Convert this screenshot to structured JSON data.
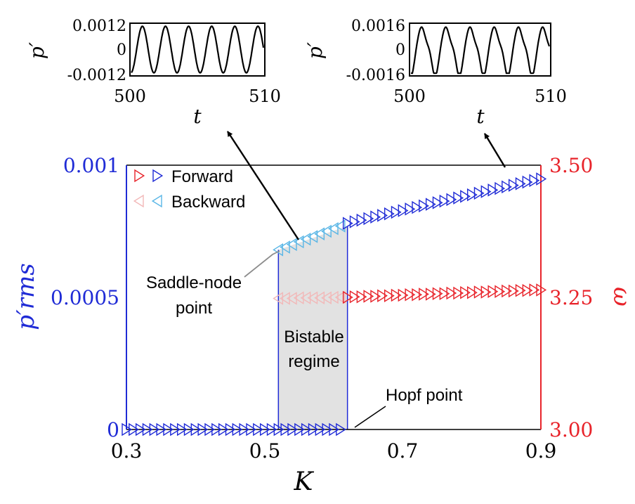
{
  "colors": {
    "forward_pm": "#1f2bd6",
    "forward_omega": "#e8232a",
    "backward_pm": "#59b6e6",
    "backward_omega": "#f2b8b8",
    "left_axis": "#1f2bd6",
    "right_axis": "#e8232a",
    "bistable_fill": "#e2e2e2"
  },
  "chart_data": [
    {
      "type": "scatter",
      "xlabel": "K",
      "ylabel_left": "p′rms",
      "ylabel_right": "ω",
      "xlim": [
        0.3,
        0.9
      ],
      "ylim_left": [
        0,
        0.001
      ],
      "ylim_right": [
        3.0,
        3.5
      ],
      "x_ticks": [
        "0.3",
        "0.5",
        "0.7",
        "0.9"
      ],
      "left_ticks": [
        "0",
        "0.0005",
        "0.001"
      ],
      "right_ticks": [
        "3.00",
        "3.25",
        "3.50"
      ],
      "legend": {
        "placement": "top-left",
        "forward": "Forward",
        "backward": "Backward"
      },
      "annotations": {
        "saddle_node_line1": "Saddle-node",
        "saddle_node_line2": "point",
        "bistable_line1": "Bistable",
        "bistable_line2": "regime",
        "hopf": "Hopf point"
      },
      "bistable_range": [
        0.52,
        0.62
      ],
      "series": [
        {
          "name": "Forward",
          "axis": "left",
          "marker": "triangle-right",
          "x": [
            0.3,
            0.31,
            0.32,
            0.33,
            0.34,
            0.35,
            0.36,
            0.37,
            0.38,
            0.39,
            0.4,
            0.41,
            0.42,
            0.43,
            0.44,
            0.45,
            0.46,
            0.47,
            0.48,
            0.49,
            0.5,
            0.51,
            0.52,
            0.53,
            0.54,
            0.55,
            0.56,
            0.57,
            0.58,
            0.59,
            0.6,
            0.61,
            0.62,
            0.63,
            0.64,
            0.65,
            0.66,
            0.67,
            0.68,
            0.69,
            0.7,
            0.71,
            0.72,
            0.73,
            0.74,
            0.75,
            0.76,
            0.77,
            0.78,
            0.79,
            0.8,
            0.81,
            0.82,
            0.83,
            0.84,
            0.85,
            0.86,
            0.87,
            0.88,
            0.89,
            0.9
          ],
          "y": [
            0,
            0,
            0,
            0,
            0,
            0,
            0,
            0,
            0,
            0,
            0,
            0,
            0,
            0,
            0,
            0,
            0,
            0,
            0,
            0,
            0,
            0,
            0,
            0,
            0,
            0,
            0,
            0,
            0,
            0,
            0,
            0,
            0.00078,
            0.000786,
            0.000792,
            0.000798,
            0.000804,
            0.00081,
            0.000816,
            0.000822,
            0.000828,
            0.000834,
            0.00084,
            0.000846,
            0.000852,
            0.000858,
            0.000864,
            0.00087,
            0.000876,
            0.000882,
            0.000888,
            0.000894,
            0.0009,
            0.000906,
            0.000912,
            0.000918,
            0.000924,
            0.00093,
            0.000936,
            0.000942,
            0.000948
          ]
        },
        {
          "name": "Backward",
          "axis": "left",
          "marker": "triangle-left",
          "x": [
            0.52,
            0.53,
            0.54,
            0.55,
            0.56,
            0.57,
            0.58,
            0.59,
            0.6,
            0.61
          ],
          "y": [
            0.00068,
            0.00069,
            0.0007,
            0.00071,
            0.00072,
            0.00073,
            0.00074,
            0.00075,
            0.00076,
            0.00077
          ]
        },
        {
          "name": "Forward",
          "axis": "right",
          "marker": "triangle-right",
          "x": [
            0.62,
            0.63,
            0.64,
            0.65,
            0.66,
            0.67,
            0.68,
            0.69,
            0.7,
            0.71,
            0.72,
            0.73,
            0.74,
            0.75,
            0.76,
            0.77,
            0.78,
            0.79,
            0.8,
            0.81,
            0.82,
            0.83,
            0.84,
            0.85,
            0.86,
            0.87,
            0.88,
            0.89,
            0.9
          ],
          "y": [
            3.25,
            3.251,
            3.251,
            3.252,
            3.252,
            3.253,
            3.253,
            3.254,
            3.254,
            3.255,
            3.255,
            3.256,
            3.256,
            3.257,
            3.257,
            3.258,
            3.258,
            3.259,
            3.259,
            3.26,
            3.26,
            3.261,
            3.261,
            3.262,
            3.262,
            3.263,
            3.263,
            3.264,
            3.264
          ]
        },
        {
          "name": "Backward",
          "axis": "right",
          "marker": "triangle-left",
          "x": [
            0.52,
            0.53,
            0.54,
            0.55,
            0.56,
            0.57,
            0.58,
            0.59,
            0.6,
            0.61
          ],
          "y": [
            3.248,
            3.248,
            3.248,
            3.249,
            3.249,
            3.249,
            3.249,
            3.249,
            3.25,
            3.25
          ]
        }
      ]
    },
    {
      "type": "line",
      "xlabel": "t",
      "ylabel": "p′",
      "xlim": [
        500,
        510
      ],
      "ylim": [
        -0.0012,
        0.0012
      ],
      "x_ticks": [
        "500",
        "510"
      ],
      "y_ticks": [
        "0.0012",
        "0",
        "-0.0012"
      ],
      "waveform": {
        "period": 1.75,
        "amplitude": 0.00112,
        "shape": "smooth"
      }
    },
    {
      "type": "line",
      "xlabel": "t",
      "ylabel": "p′",
      "xlim": [
        500,
        510
      ],
      "ylim": [
        -0.0016,
        0.0016
      ],
      "x_ticks": [
        "500",
        "510"
      ],
      "y_ticks": [
        "0.0016",
        "0",
        "-0.0016"
      ],
      "waveform": {
        "period": 1.75,
        "amplitude": 0.00152,
        "shape": "sharp"
      }
    }
  ]
}
